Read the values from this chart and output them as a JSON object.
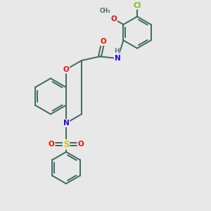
{
  "bg_color": "#e8e8e8",
  "bond_color": "#3d6b5e",
  "atom_colors": {
    "O": "#ee1100",
    "N": "#2200ee",
    "S": "#cccc00",
    "Cl": "#88bb00",
    "H": "#667788",
    "C": "#3d6b5e"
  }
}
